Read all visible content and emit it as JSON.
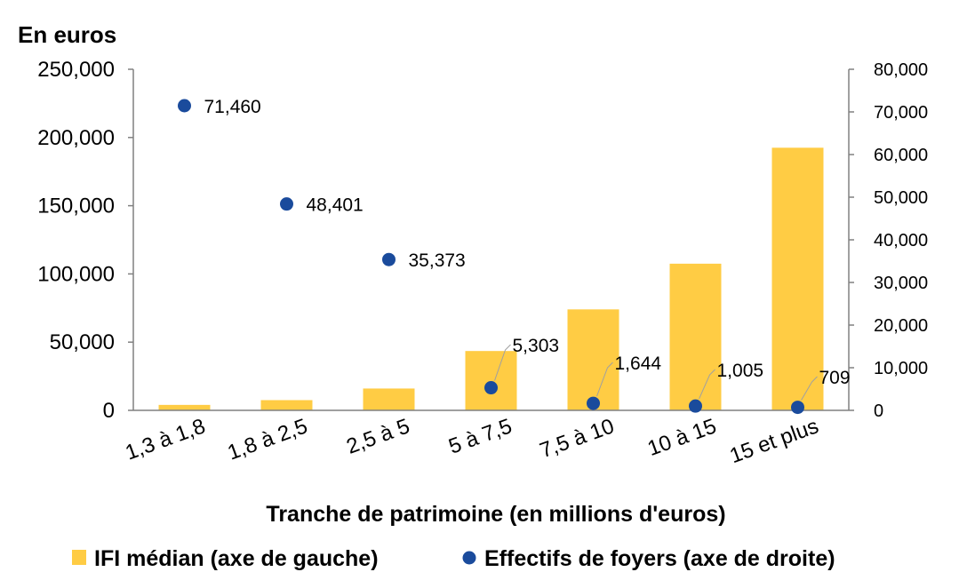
{
  "chart_data": {
    "type": "bar",
    "unit_label": "En euros",
    "xlabel": "Tranche de patrimoine (en millions d'euros)",
    "categories": [
      "1,3 à 1,8",
      "1,8 à 2,5",
      "2,5 à 5",
      "5 à 7,5",
      "7,5 à 10",
      "10 à 15",
      "15 et plus"
    ],
    "y_left": {
      "lim": [
        0,
        250000
      ],
      "ticks": [
        "0",
        "50,000",
        "100,000",
        "150,000",
        "200,000",
        "250,000"
      ]
    },
    "y_right": {
      "lim": [
        0,
        80000
      ],
      "ticks": [
        "0",
        "10,000",
        "20,000",
        "30,000",
        "40,000",
        "50,000",
        "60,000",
        "70,000",
        "80,000"
      ]
    },
    "series": [
      {
        "name": "IFI  médian (axe de gauche)",
        "type": "bar",
        "axis": "left",
        "color": "#FFCC44",
        "values": [
          4000,
          7500,
          16000,
          43500,
          74000,
          107500,
          192500
        ]
      },
      {
        "name": "Effectifs de foyers (axe de droite)",
        "type": "scatter",
        "axis": "right",
        "color": "#1A4B9C",
        "values": [
          71460,
          48401,
          35373,
          5303,
          1644,
          1005,
          709
        ],
        "labels": [
          "71,460",
          "48,401",
          "35,373",
          "5,303",
          "1,644",
          "1,005",
          "709"
        ]
      }
    ],
    "grid": false,
    "legend": "bottom"
  }
}
